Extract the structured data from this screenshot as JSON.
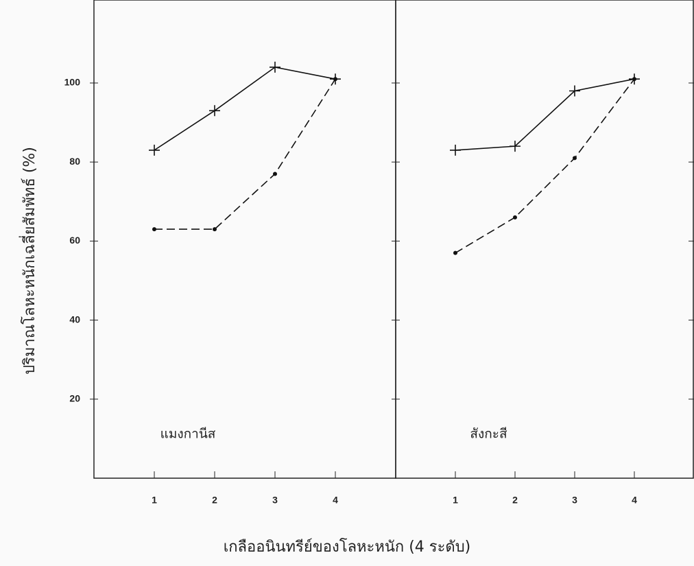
{
  "chart_data": [
    {
      "type": "line",
      "ylabel": "ปริมาณโลหะหนักเฉลี่ยสัมพัทธ์ (%)",
      "xlabel": "เกลืออนินทรีย์ของโลหะหนัก (4 ระดับ)",
      "label": "แมงกานีส",
      "x": [
        1,
        2,
        3,
        4
      ],
      "xlim": [
        0,
        5
      ],
      "xticks": [
        1,
        2,
        3,
        4
      ],
      "ylim": [
        0,
        121
      ],
      "yticks": [
        20,
        40,
        60,
        80,
        100
      ],
      "series": [
        {
          "color": "#111111",
          "dash": false,
          "marker": "plus",
          "values": [
            83,
            93,
            104,
            101
          ]
        },
        {
          "color": "#111111",
          "dash": true,
          "marker": "dot",
          "values": [
            63,
            63,
            77,
            101
          ]
        }
      ]
    },
    {
      "type": "line",
      "label": "สังกะสี",
      "x": [
        1,
        2,
        3,
        4
      ],
      "xlim": [
        0,
        5
      ],
      "xticks": [
        1,
        2,
        3,
        4
      ],
      "ylim": [
        0,
        121
      ],
      "series": [
        {
          "color": "#111111",
          "dash": false,
          "marker": "plus",
          "values": [
            83,
            84,
            98,
            101
          ]
        },
        {
          "color": "#111111",
          "dash": true,
          "marker": "dot",
          "values": [
            57,
            66,
            81,
            101
          ]
        }
      ]
    }
  ]
}
